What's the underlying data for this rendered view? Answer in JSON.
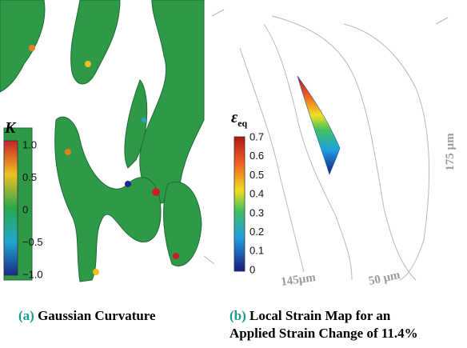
{
  "panels": [
    {
      "label": "(a)",
      "caption": [
        "Gaussian Curvature"
      ],
      "colorbar": {
        "symbol": "K",
        "ticks": [
          "1.0",
          "0.5",
          "0",
          "−0.5",
          "−1.0"
        ]
      }
    },
    {
      "label": "(b)",
      "caption": [
        "Local Strain Map for an",
        "Applied Strain Change of 11.4%"
      ],
      "colorbar": {
        "symbol": "ε",
        "subscript": "eq",
        "ticks": [
          "0.7",
          "0.6",
          "0.5",
          "0.4",
          "0.3",
          "0.2",
          "0.1",
          "0"
        ]
      },
      "scale_labels": [
        "175 µm",
        "145µm",
        "50 µm"
      ]
    }
  ]
}
